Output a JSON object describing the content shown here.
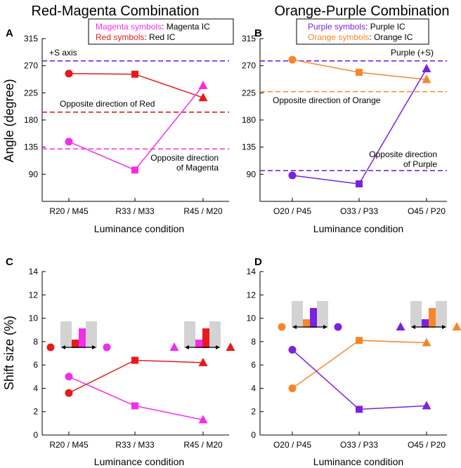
{
  "colors": {
    "red": "#e8191c",
    "magenta": "#f22ee8",
    "purple": "#7a22e0",
    "orange": "#f7862a"
  },
  "shared": {
    "angle_ylabel": "Angle (degree)",
    "shift_ylabel": "Shift size (%)",
    "xlabel": "Luminance condition"
  },
  "chart_data": [
    {
      "panel": "A",
      "type": "line",
      "title": "Red-Magenta Combination",
      "categories": [
        "R20 / M45",
        "R33 / M33",
        "R45 / M20"
      ],
      "ylabel": "Angle (degree)",
      "xlabel": "Luminance condition",
      "ylim": [
        45,
        315
      ],
      "yticks": [
        90,
        135,
        180,
        225,
        270,
        315
      ],
      "series": [
        {
          "name": "Red symbols",
          "color": "#e8191c",
          "values": [
            257,
            256,
            217
          ],
          "markers": [
            "circle",
            "square",
            "triangle"
          ]
        },
        {
          "name": "Magenta symbols",
          "color": "#f22ee8",
          "values": [
            144,
            97,
            237
          ],
          "markers": [
            "circle",
            "square",
            "triangle"
          ]
        }
      ],
      "reflines": [
        {
          "value": 278,
          "color": "#7a22e0",
          "label": "+S axis"
        },
        {
          "value": 193,
          "color": "#e8191c",
          "label": "Opposite direction of Red"
        },
        {
          "value": 132,
          "color": "#f22ee8",
          "label": "Opposite direction",
          "label2": "of Magenta"
        }
      ],
      "legend": [
        {
          "prefix": "Magenta symbols",
          "suffix": ":  Magenta IC",
          "color": "#f22ee8"
        },
        {
          "prefix": "Red symbols",
          "suffix": ":       Red IC",
          "color": "#e8191c"
        }
      ]
    },
    {
      "panel": "B",
      "type": "line",
      "title": "Orange-Purple Combination",
      "categories": [
        "O20 / P45",
        "O33 / P33",
        "O45 / P20"
      ],
      "ylabel": "",
      "xlabel": "Luminance condition",
      "ylim": [
        45,
        315
      ],
      "yticks": [
        90,
        135,
        180,
        225,
        270,
        315
      ],
      "series": [
        {
          "name": "Orange symbols",
          "color": "#f7862a",
          "values": [
            280,
            259,
            247
          ],
          "markers": [
            "circle",
            "square",
            "triangle"
          ]
        },
        {
          "name": "Purple symbols",
          "color": "#7a22e0",
          "values": [
            88,
            74,
            265
          ],
          "markers": [
            "circle",
            "square",
            "triangle"
          ]
        }
      ],
      "reflines": [
        {
          "value": 278,
          "color": "#7a22e0",
          "label": "Purple (+S)"
        },
        {
          "value": 227,
          "color": "#f7862a",
          "label": "Opposite direction of Orange"
        },
        {
          "value": 96,
          "color": "#7a22e0",
          "label": "Opposite direction",
          "label2": "of Purple"
        }
      ],
      "legend": [
        {
          "prefix": "Purple symbols",
          "suffix": ":   Purple IC",
          "color": "#7a22e0"
        },
        {
          "prefix": "Orange symbols",
          "suffix": ": Orange IC",
          "color": "#f7862a"
        }
      ]
    },
    {
      "panel": "C",
      "type": "line",
      "categories": [
        "R20 / M45",
        "R33 / M33",
        "R45 / M20"
      ],
      "ylabel": "Shift size (%)",
      "xlabel": "Luminance condition",
      "ylim": [
        0,
        14
      ],
      "yticks": [
        0,
        2,
        4,
        6,
        8,
        10,
        12,
        14
      ],
      "series": [
        {
          "name": "Red",
          "color": "#e8191c",
          "values": [
            3.6,
            6.4,
            6.2
          ],
          "markers": [
            "circle",
            "square",
            "triangle"
          ]
        },
        {
          "name": "Magenta",
          "color": "#f22ee8",
          "values": [
            5.0,
            2.5,
            1.3
          ],
          "markers": [
            "circle",
            "square",
            "triangle"
          ]
        }
      ]
    },
    {
      "panel": "D",
      "type": "line",
      "categories": [
        "O20 / P45",
        "O33 / P33",
        "O45 / P20"
      ],
      "ylabel": "",
      "xlabel": "Luminance condition",
      "ylim": [
        0,
        14
      ],
      "yticks": [
        0,
        2,
        4,
        6,
        8,
        10,
        12,
        14
      ],
      "series": [
        {
          "name": "Orange",
          "color": "#f7862a",
          "values": [
            4.0,
            8.1,
            7.9
          ],
          "markers": [
            "circle",
            "square",
            "triangle"
          ]
        },
        {
          "name": "Purple",
          "color": "#7a22e0",
          "values": [
            7.3,
            2.2,
            2.5
          ],
          "markers": [
            "circle",
            "square",
            "triangle"
          ]
        }
      ]
    }
  ]
}
